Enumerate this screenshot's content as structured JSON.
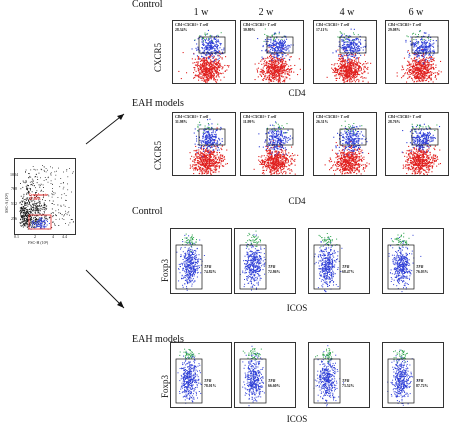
{
  "sections": {
    "control_top": "Control",
    "eah_top": "EAH models",
    "control_bottom": "Control",
    "eah_bottom": "EAH models"
  },
  "columns": [
    "1 w",
    "2 w",
    "4 w",
    "6 w"
  ],
  "axes": {
    "cxcr5": "CXCR5",
    "cd4": "CD4",
    "foxp3": "Foxp3",
    "icos": "ICOS"
  },
  "gate_label": "CD4+CXCR5+ T cell",
  "tfr_label": "TFR",
  "control_cxcr5": [
    "28.34%",
    "30.80%",
    "17.11%",
    "29.08%"
  ],
  "eah_cxcr5": [
    "31.98%",
    "11.99%",
    "26.31%",
    "28.76%"
  ],
  "control_foxp3": [
    "74.82%",
    "72.86%",
    "68.47%",
    "76.03%"
  ],
  "eah_foxp3": [
    "78.01%",
    "66.60%",
    "73.52%",
    "87.72%"
  ],
  "lymph": {
    "title": "Lymphocyte",
    "pct": "47.84%",
    "ylabel": "SSC-A (10³)",
    "xlabel": "FSC-H (10³)",
    "yticks": [
      "256",
      "512",
      "768",
      "1024"
    ],
    "xticks": [
      "0.1",
      "2",
      "4",
      "4.4"
    ]
  },
  "colors": {
    "red": "#e0201e",
    "blue": "#2f3fd6",
    "green": "#2aa14a",
    "black": "#111111"
  }
}
